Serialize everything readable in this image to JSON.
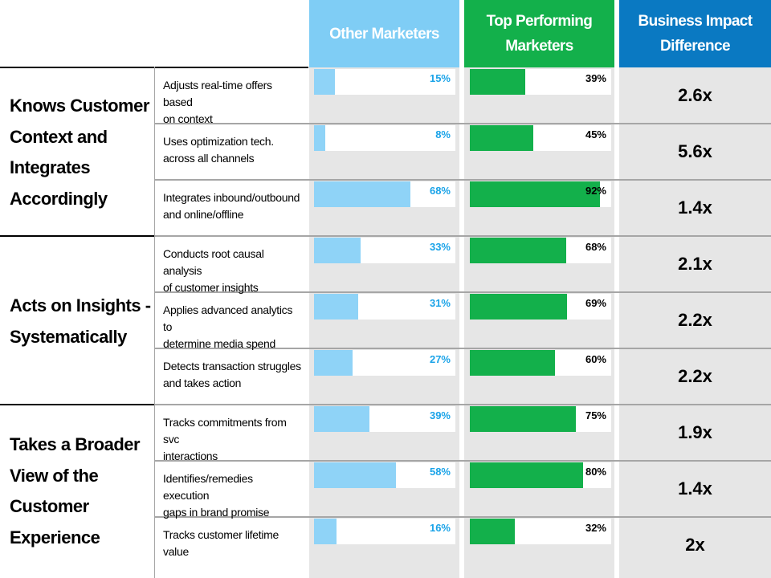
{
  "columns": {
    "other": "Other Marketers",
    "top": "Top Performing\nMarketers",
    "impact": "Business Impact\nDifference"
  },
  "colors": {
    "other_header": "#7fcdf5",
    "other_fill": "#8fd3f7",
    "other_text": "#1aa3e8",
    "top_header": "#13b04b",
    "top_fill": "#13b04b",
    "top_text": "#000000",
    "impact_header": "#0a79c2",
    "panel_bg": "#e6e6e6"
  },
  "groups": [
    {
      "label": "Knows Customer\nContext and\nIntegrates\nAccordingly"
    },
    {
      "label": "Acts on Insights -\nSystematically"
    },
    {
      "label": "Takes a Broader\nView of the\nCustomer\nExperience"
    }
  ],
  "rows": [
    {
      "label": "Adjusts real-time offers based\non context",
      "other_label": "15%",
      "top_label": "39%",
      "impact": "2.6x"
    },
    {
      "label": "Uses optimization tech.\nacross all channels",
      "other_label": "8%",
      "top_label": "45%",
      "impact": "5.6x"
    },
    {
      "label": "Integrates inbound/outbound\nand online/offline",
      "other_label": "68%",
      "top_label": "92%",
      "impact": "1.4x"
    },
    {
      "label": "Conducts root causal analysis\nof customer insights",
      "other_label": "33%",
      "top_label": "68%",
      "impact": "2.1x"
    },
    {
      "label": "Applies advanced analytics to\ndetermine media spend",
      "other_label": "31%",
      "top_label": "69%",
      "impact": "2.2x"
    },
    {
      "label": "Detects transaction struggles\nand takes action",
      "other_label": "27%",
      "top_label": "60%",
      "impact": "2.2x"
    },
    {
      "label": "Tracks commitments  from svc\ninteractions",
      "other_label": "39%",
      "top_label": "75%",
      "impact": "1.9x"
    },
    {
      "label": "Identifies/remedies execution\ngaps in brand promise",
      "other_label": "58%",
      "top_label": "80%",
      "impact": "1.4x"
    },
    {
      "label": "Tracks customer lifetime\nvalue",
      "other_label": "16%",
      "top_label": "32%",
      "impact": "2x"
    }
  ],
  "chart_data": {
    "type": "bar",
    "orientation": "horizontal",
    "categories": [
      "Adjusts real-time offers based on context",
      "Uses optimization tech. across all channels",
      "Integrates inbound/outbound and online/offline",
      "Conducts root causal analysis of customer insights",
      "Applies advanced analytics to determine media spend",
      "Detects transaction struggles and takes action",
      "Tracks commitments  from svc interactions",
      "Identifies/remedies execution gaps in brand promise",
      "Tracks customer lifetime value"
    ],
    "series": [
      {
        "name": "Other Marketers",
        "values": [
          15,
          8,
          68,
          33,
          31,
          27,
          39,
          58,
          16
        ]
      },
      {
        "name": "Top Performing Marketers",
        "values": [
          39,
          45,
          92,
          68,
          69,
          60,
          75,
          80,
          32
        ]
      }
    ],
    "business_impact_difference": [
      "2.6x",
      "5.6x",
      "1.4x",
      "2.1x",
      "2.2x",
      "2.2x",
      "1.9x",
      "1.4x",
      "2x"
    ],
    "unit": "%",
    "xlim": [
      0,
      100
    ]
  }
}
